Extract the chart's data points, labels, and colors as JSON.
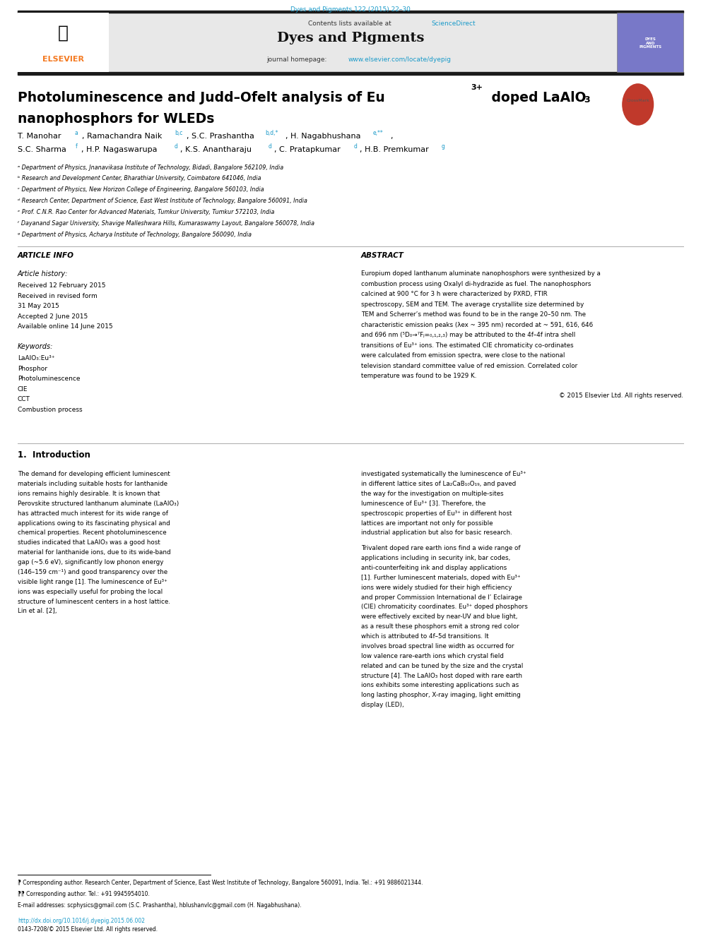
{
  "page_width": 9.92,
  "page_height": 13.23,
  "background_color": "#ffffff",
  "top_bar_text": "Dyes and Pigments 122 (2015) 22–30",
  "top_bar_color": "#1a9ac9",
  "journal_header_bg": "#e8e8e8",
  "header_contents_text": "Contents lists available at ",
  "header_sciencedirect": "ScienceDirect",
  "header_journal_name": "Dyes and Pigments",
  "header_homepage_text": "journal homepage: ",
  "header_homepage_url": "www.elsevier.com/locate/dyepig",
  "elsevier_color": "#f47920",
  "link_color": "#1a9ac9",
  "black_bar_color": "#1a1a1a",
  "article_title_line1": "Photoluminescence and Judd–Ofelt analysis of Eu",
  "article_title_sup": "3+",
  "article_title_line1b": " doped LaAlO",
  "article_title_sub": "3",
  "article_title_line2": "nanophosphors for WLEDs",
  "authors": "T. Manohar ᵃ, Ramachandra Naik ᵇʸᶜ, S.C. Prashantha ᵇʸᵈ,*, H. Nagabhushana ᵉ,**,",
  "authors2": "S.C. Sharma ᶠ, H.P. Nagaswarupa ᵈ, K.S. Anantharaju ᵈ, C. Pratapkumar ᵈ, H.B. Premkumar¹",
  "affiliations": [
    "ᵃ Department of Physics, Jnanavikasa Institute of Technology, Bidadi, Bangalore 562109, India",
    "ᵇ Research and Development Center, Bharathiar University, Coimbatore 641046, India",
    "ᶜ Department of Physics, New Horizon College of Engineering, Bangalore 560103, India",
    "ᵈ Research Center, Department of Science, East West Institute of Technology, Bangalore 560091, India",
    "ᵉ Prof. C.N.R. Rao Center for Advanced Materials, Tumkur University, Tumkur 572103, India",
    "ᶠ Dayanand Sagar University, Shavige Malleshwara Hills, Kumaraswamy Layout, Bangalore 560078, India",
    "ᵍ Department of Physics, Acharya Institute of Technology, Bangalore 560090, India"
  ],
  "article_info_title": "ARTICLE INFO",
  "article_history_title": "Article history:",
  "article_history": [
    "Received 12 February 2015",
    "Received in revised form",
    "31 May 2015",
    "Accepted 2 June 2015",
    "Available online 14 June 2015"
  ],
  "keywords_title": "Keywords:",
  "keywords": [
    "LaAlO₃:Eu³⁺",
    "Phosphor",
    "Photoluminescence",
    "CIE",
    "CCT",
    "Combustion process"
  ],
  "abstract_title": "ABSTRACT",
  "abstract_text": "Europium doped lanthanum aluminate nanophosphors were synthesized by a combustion process using Oxalyl di-hydrazide as fuel. The nanophosphors calcined at 900 °C for 3 h were characterized by PXRD, FTIR spectroscopy, SEM and TEM. The average crystallite size determined by TEM and Scherrer’s method was found to be in the range 20–50 nm. The characteristic emission peaks (λex ~ 395 nm) recorded at ~ 591, 616, 646 and 696 nm (⁵D₀→⁷Fⱼ=₀,₁,₂,₃) may be attributed to the 4f–4f intra shell transitions of Eu³⁺ ions. The estimated CIE chromaticity co-ordinates were calculated from emission spectra, were close to the national television standard committee value of red emission. Correlated color temperature was found to be 1929 K.",
  "copyright_text": "© 2015 Elsevier Ltd. All rights reserved.",
  "section1_title": "1.  Introduction",
  "intro_col1": "The demand for developing efficient luminescent materials including suitable hosts for lanthanide ions remains highly desirable. It is known that Perovskite structured lanthanum aluminate (LaAlO₃) has attracted much interest for its wide range of applications owing to its fascinating physical and chemical properties. Recent photoluminescence studies indicated that LaAlO₃ was a good host material for lanthanide ions, due to its wide-band gap (~5.6 eV), significantly low phonon energy (146–159 cm⁻¹) and good transparency over the visible light range [1]. The luminescence of Eu³⁺ ions was especially useful for probing the local structure of luminescent centers in a host lattice. Lin et al. [2],",
  "intro_col2": "investigated systematically the luminescence of Eu³⁺ in different lattice sites of La₂CaB₁₀O₁₉, and paved the way for the investigation on multiple-sites luminescence of Eu³⁺ [3]. Therefore, the spectroscopic properties of Eu³⁺ in different host lattices are important not only for possible industrial application but also for basic research.\n\nTrivalent doped rare earth ions find a wide range of applications including in security ink, bar codes, anti-counterfeiting ink and display applications [1]. Further luminescent materials, doped with Eu³⁺ ions were widely studied for their high efficiency and proper Commission International de l’ Eclairage (CIE) chromaticity coordinates. Eu³⁺ doped phosphors were effectively excited by near-UV and blue light, as a result these phosphors emit a strong red color which is attributed to 4f–5d transitions. It involves broad spectral line width as occurred for low valence rare-earth ions which crystal field related and can be tuned by the size and the crystal structure [4]. The LaAlO₃ host doped with rare earth ions exhibits some interesting applications such as long lasting phosphor, X-ray imaging, light emitting display (LED),",
  "footnote1": "⁋ Corresponding author. Research Center, Department of Science, East West Institute of Technology, Bangalore 560091, India. Tel.: +91 9886021344.",
  "footnote2": "⁋⁋ Corresponding author. Tel.: +91 9945954010.",
  "footnote3": "E-mail addresses: scphysics@gmail.com (S.C. Prashantha), hblushanvlc@gmail.com (H. Nagabhushana).",
  "doi_text": "http://dx.doi.org/10.1016/j.dyepig.2015.06.002",
  "issn_text": "0143-7208/© 2015 Elsevier Ltd. All rights reserved."
}
